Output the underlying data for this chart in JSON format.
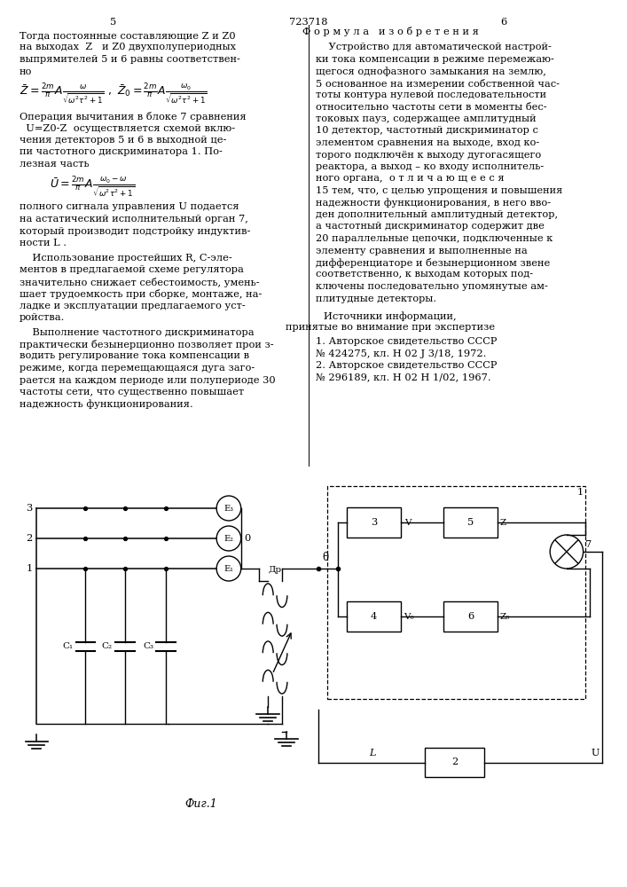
{
  "bg_color": "#ffffff",
  "page_left": "5",
  "page_center": "723718",
  "page_right": "6",
  "fig_label": "Фиг.1",
  "formula_header": "Ф о р м у л а   и з о б р е т е н и я",
  "sources_header": "Источники информации,",
  "sources_sub": "принятые во внимание при экспертизе",
  "source1": "1. Авторское свидетельство СССР",
  "source1b": "№ 424275, кл. Н 02 J 3/18, 1972.",
  "source2": "2. Авторское свидетельство СССР",
  "source2b": "№ 296189, кл. Н 02 Н 1/02, 1967.",
  "nadejnost": "надежность функционирования.",
  "left_lines_1": [
    "Тогда постоянные составляющие Z и Z0",
    "на выходах  Z   и Z0 двухполупериодных",
    "выпрямителей 5 и 6 равны соответствен-",
    "но"
  ],
  "left_lines_2": [
    "Операция вычитания в блоке 7 сравнения",
    "  U=Z0-Z  осуществляется схемой вклю-",
    "чения детекторов 5 и 6 в выходной це-",
    "пи частотного дискриминатора 1. По-",
    "лезная часть"
  ],
  "left_lines_3": [
    "полного сигнала управления U подается",
    "на астатический исполнительный орган 7,",
    "который производит подстройку индуктив-",
    "ности L ."
  ],
  "left_lines_4": [
    "    Использование простейших R, С-эле-",
    "ментов в предлагаемой схеме регулятора",
    "значительно снижает себестоимость, умень-",
    "шает трудоемкость при сборке, монтаже, на-",
    "ладке и эксплуатации предлагаемого уст-",
    "ройства."
  ],
  "left_lines_5": [
    "    Выполнение частотного дискриминатора",
    "практически безынерционно позволяет прои з-",
    "водить регулирование тока компенсации в",
    "режиме, когда перемещающаяся дуга заго-",
    "рается на каждом периоде или полупериоде 30",
    "частоты сети, что существенно повышает"
  ],
  "right_lines": [
    "    Устройство для автоматической настрой-",
    "ки тока компенсации в режиме перемежаю-",
    "щегося однофазного замыкания на землю,",
    "5 основанное на измерении собственной час-",
    "тоты контура нулевой последовательности",
    "относительно частоты сети в моменты бес-",
    "токовых пауз, содержащее амплитудный",
    "10 детектор, частотный дискриминатор с",
    "элементом сравнения на выходе, вход ко-",
    "торого подключён к выходу дугогасящего",
    "реактора, а выход – ко входу исполнитель-",
    "ного органа,  о т л и ч а ю щ е е с я",
    "15 тем, что, с целью упрощения и повышения",
    "надежности функционирования, в него вво-",
    "ден дополнительный амплитудный детектор,",
    "а частотный дискриминатор содержит две",
    "20 параллельные цепочки, подключенные к",
    "элементу сравнения и выполненные на",
    "дифференциаторе и безынерционном звене",
    "соответственно, к выходам которых под-",
    "ключены последовательно упомянутые ам-",
    "плитудные детекторы."
  ]
}
